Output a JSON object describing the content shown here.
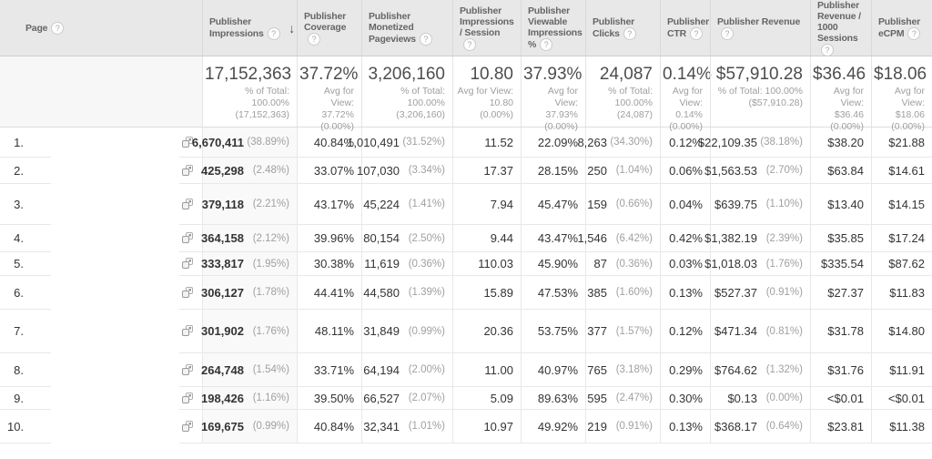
{
  "ui": {
    "help_glyph": "?",
    "sort_arrow": "↓",
    "colors": {
      "header_bg": "#e8e8e8",
      "sorted_column_bg": "#f9f9f9",
      "totals_page_bg": "#f7f7f7"
    }
  },
  "table": {
    "columns": [
      {
        "id": "page",
        "label": "Page"
      },
      {
        "id": "impressions",
        "label": "Publisher Impressions",
        "sorted": "descending"
      },
      {
        "id": "coverage",
        "label": "Publisher Coverage"
      },
      {
        "id": "monetized",
        "label": "Publisher Monetized Pageviews"
      },
      {
        "id": "impsession",
        "label": "Publisher Impressions / Session"
      },
      {
        "id": "viewable",
        "label": "Publisher Viewable Impressions %"
      },
      {
        "id": "clicks",
        "label": "Publisher Clicks"
      },
      {
        "id": "ctr",
        "label": "Publisher CTR"
      },
      {
        "id": "revenue",
        "label": "Publisher Revenue"
      },
      {
        "id": "rev1000",
        "label": "Publisher Revenue / 1000 Sessions"
      },
      {
        "id": "ecpm",
        "label": "Publisher eCPM"
      }
    ],
    "totals": {
      "impressions": {
        "value": "17,152,363",
        "sub": "% of Total: 100.00% (17,152,363)"
      },
      "coverage": {
        "value": "37.72%",
        "sub": "Avg for View: 37.72% (0.00%)"
      },
      "monetized": {
        "value": "3,206,160",
        "sub": "% of Total: 100.00% (3,206,160)"
      },
      "impsession": {
        "value": "10.80",
        "sub": "Avg for View: 10.80 (0.00%)"
      },
      "viewable": {
        "value": "37.93%",
        "sub": "Avg for View: 37.93% (0.00%)"
      },
      "clicks": {
        "value": "24,087",
        "sub": "% of Total: 100.00% (24,087)"
      },
      "ctr": {
        "value": "0.14%",
        "sub": "Avg for View: 0.14% (0.00%)"
      },
      "revenue": {
        "value": "$57,910.28",
        "sub": "% of Total: 100.00% ($57,910.28)"
      },
      "rev1000": {
        "value": "$36.46",
        "sub": "Avg for View: $36.46 (0.00%)"
      },
      "ecpm": {
        "value": "$18.06",
        "sub": "Avg for View: $18.06 (0.00%)"
      }
    },
    "rows": [
      {
        "index": "1.",
        "page": "",
        "impressions": "6,670,411",
        "impressions_pct": "(38.89%)",
        "coverage": "40.84%",
        "monetized": "1,010,491",
        "monetized_pct": "(31.52%)",
        "impsession": "11.52",
        "viewable": "22.09%",
        "clicks": "8,263",
        "clicks_pct": "(34.30%)",
        "ctr": "0.12%",
        "revenue": "$22,109.35",
        "revenue_pct": "(38.18%)",
        "rev1000": "$38.20",
        "ecpm": "$21.88"
      },
      {
        "index": "2.",
        "page": "",
        "impressions": "425,298",
        "impressions_pct": "(2.48%)",
        "coverage": "33.07%",
        "monetized": "107,030",
        "monetized_pct": "(3.34%)",
        "impsession": "17.37",
        "viewable": "28.15%",
        "clicks": "250",
        "clicks_pct": "(1.04%)",
        "ctr": "0.06%",
        "revenue": "$1,563.53",
        "revenue_pct": "(2.70%)",
        "rev1000": "$63.84",
        "ecpm": "$14.61"
      },
      {
        "index": "3.",
        "page": "",
        "impressions": "379,118",
        "impressions_pct": "(2.21%)",
        "coverage": "43.17%",
        "monetized": "45,224",
        "monetized_pct": "(1.41%)",
        "impsession": "7.94",
        "viewable": "45.47%",
        "clicks": "159",
        "clicks_pct": "(0.66%)",
        "ctr": "0.04%",
        "revenue": "$639.75",
        "revenue_pct": "(1.10%)",
        "rev1000": "$13.40",
        "ecpm": "$14.15"
      },
      {
        "index": "4.",
        "page": "",
        "impressions": "364,158",
        "impressions_pct": "(2.12%)",
        "coverage": "39.96%",
        "monetized": "80,154",
        "monetized_pct": "(2.50%)",
        "impsession": "9.44",
        "viewable": "43.47%",
        "clicks": "1,546",
        "clicks_pct": "(6.42%)",
        "ctr": "0.42%",
        "revenue": "$1,382.19",
        "revenue_pct": "(2.39%)",
        "rev1000": "$35.85",
        "ecpm": "$17.24"
      },
      {
        "index": "5.",
        "page": "",
        "impressions": "333,817",
        "impressions_pct": "(1.95%)",
        "coverage": "30.38%",
        "monetized": "11,619",
        "monetized_pct": "(0.36%)",
        "impsession": "110.03",
        "viewable": "45.90%",
        "clicks": "87",
        "clicks_pct": "(0.36%)",
        "ctr": "0.03%",
        "revenue": "$1,018.03",
        "revenue_pct": "(1.76%)",
        "rev1000": "$335.54",
        "ecpm": "$87.62"
      },
      {
        "index": "6.",
        "page": "",
        "impressions": "306,127",
        "impressions_pct": "(1.78%)",
        "coverage": "44.41%",
        "monetized": "44,580",
        "monetized_pct": "(1.39%)",
        "impsession": "15.89",
        "viewable": "47.53%",
        "clicks": "385",
        "clicks_pct": "(1.60%)",
        "ctr": "0.13%",
        "revenue": "$527.37",
        "revenue_pct": "(0.91%)",
        "rev1000": "$27.37",
        "ecpm": "$11.83"
      },
      {
        "index": "7.",
        "page": "",
        "impressions": "301,902",
        "impressions_pct": "(1.76%)",
        "coverage": "48.11%",
        "monetized": "31,849",
        "monetized_pct": "(0.99%)",
        "impsession": "20.36",
        "viewable": "53.75%",
        "clicks": "377",
        "clicks_pct": "(1.57%)",
        "ctr": "0.12%",
        "revenue": "$471.34",
        "revenue_pct": "(0.81%)",
        "rev1000": "$31.78",
        "ecpm": "$14.80"
      },
      {
        "index": "8.",
        "page": "",
        "impressions": "264,748",
        "impressions_pct": "(1.54%)",
        "coverage": "33.71%",
        "monetized": "64,194",
        "monetized_pct": "(2.00%)",
        "impsession": "11.00",
        "viewable": "40.97%",
        "clicks": "765",
        "clicks_pct": "(3.18%)",
        "ctr": "0.29%",
        "revenue": "$764.62",
        "revenue_pct": "(1.32%)",
        "rev1000": "$31.76",
        "ecpm": "$11.91"
      },
      {
        "index": "9.",
        "page": "",
        "impressions": "198,426",
        "impressions_pct": "(1.16%)",
        "coverage": "39.50%",
        "monetized": "66,527",
        "monetized_pct": "(2.07%)",
        "impsession": "5.09",
        "viewable": "89.63%",
        "clicks": "595",
        "clicks_pct": "(2.47%)",
        "ctr": "0.30%",
        "revenue": "$0.13",
        "revenue_pct": "(0.00%)",
        "rev1000": "<$0.01",
        "ecpm": "<$0.01"
      },
      {
        "index": "10.",
        "page": "",
        "impressions": "169,675",
        "impressions_pct": "(0.99%)",
        "coverage": "40.84%",
        "monetized": "32,341",
        "monetized_pct": "(1.01%)",
        "impsession": "10.97",
        "viewable": "49.92%",
        "clicks": "219",
        "clicks_pct": "(0.91%)",
        "ctr": "0.13%",
        "revenue": "$368.17",
        "revenue_pct": "(0.64%)",
        "rev1000": "$23.81",
        "ecpm": "$11.38"
      }
    ]
  }
}
